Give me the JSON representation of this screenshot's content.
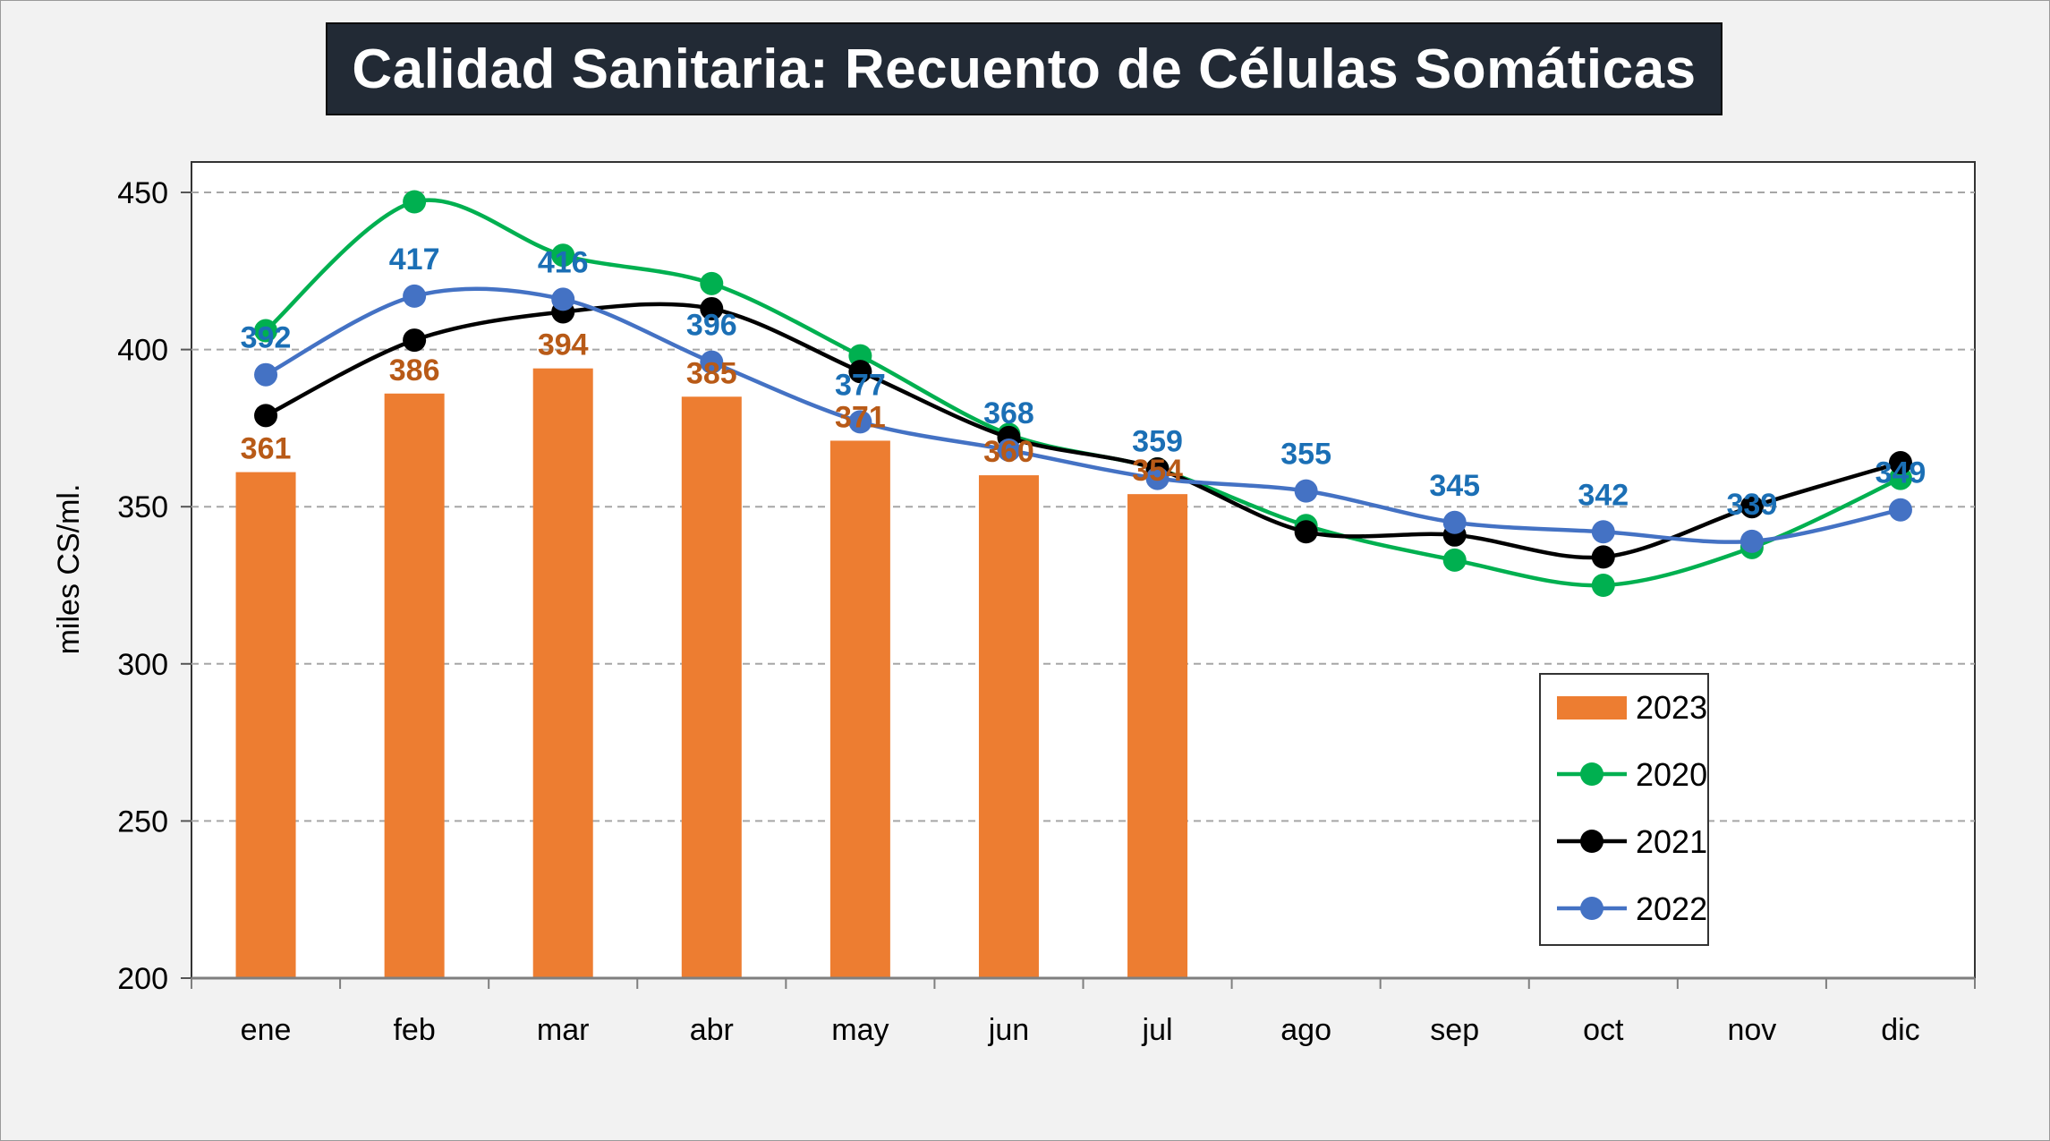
{
  "chart_data": {
    "type": "bar+line",
    "title": "Calidad Sanitaria: Recuento de Células Somáticas",
    "ylabel": "miles CS/ml.",
    "xlabel": "",
    "ylim": [
      200,
      450
    ],
    "yticks": [
      "200",
      "250",
      "300",
      "350",
      "400",
      "450"
    ],
    "grid": true,
    "legend_position": "bottom-right",
    "categories": [
      "ene",
      "feb",
      "mar",
      "abr",
      "may",
      "jun",
      "jul",
      "ago",
      "sep",
      "oct",
      "nov",
      "dic"
    ],
    "series": [
      {
        "name": "2023",
        "kind": "bar",
        "color": "#ed7d31",
        "values": [
          361,
          386,
          394,
          385,
          371,
          360,
          354,
          null,
          null,
          null,
          null,
          null
        ],
        "labels": [
          "361",
          "386",
          "394",
          "385",
          "371",
          "360",
          "354",
          null,
          null,
          null,
          null,
          null
        ]
      },
      {
        "name": "2020",
        "kind": "line",
        "color": "#00b050",
        "values": [
          406,
          447,
          430,
          421,
          398,
          373,
          362,
          344,
          333,
          325,
          337,
          359
        ]
      },
      {
        "name": "2021",
        "kind": "line",
        "color": "#000000",
        "values": [
          379,
          403,
          412,
          413,
          393,
          372,
          362,
          342,
          341,
          334,
          350,
          364
        ]
      },
      {
        "name": "2022",
        "kind": "line",
        "color": "#4472c4",
        "values": [
          392,
          417,
          416,
          396,
          377,
          368,
          359,
          355,
          345,
          342,
          339,
          349
        ],
        "labels": [
          "392",
          "417",
          "416",
          "396",
          "377",
          "368",
          "359",
          "355",
          "345",
          "342",
          "339",
          "349"
        ]
      }
    ]
  }
}
